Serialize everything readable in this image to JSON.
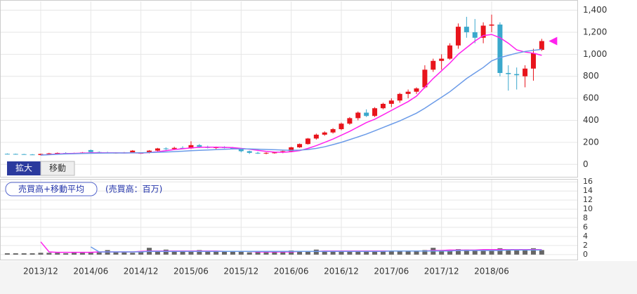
{
  "controls": [
    "拡大",
    "移動"
  ],
  "chart_data": [
    {
      "type": "candlestick",
      "categories": [
        null,
        null,
        null,
        null,
        "2013/12",
        null,
        null,
        null,
        null,
        null,
        "2014/06",
        null,
        null,
        null,
        null,
        null,
        "2014/12",
        null,
        null,
        null,
        null,
        null,
        "2015/06",
        null,
        null,
        null,
        null,
        null,
        "2015/12",
        null,
        null,
        null,
        null,
        null,
        "2016/06",
        null,
        null,
        null,
        null,
        null,
        "2016/12",
        null,
        null,
        null,
        null,
        null,
        "2017/06",
        null,
        null,
        null,
        null,
        null,
        "2017/12",
        null,
        null,
        null,
        null,
        null,
        "2018/06",
        null,
        null,
        null,
        null,
        null,
        null
      ],
      "ohlc": [
        [
          96,
          100,
          92,
          95
        ],
        [
          95,
          98,
          90,
          93
        ],
        [
          93,
          96,
          88,
          90
        ],
        [
          90,
          94,
          86,
          88
        ],
        [
          85,
          98,
          82,
          95
        ],
        [
          95,
          105,
          90,
          100
        ],
        [
          100,
          108,
          95,
          104
        ],
        [
          104,
          110,
          98,
          100
        ],
        [
          100,
          106,
          95,
          103
        ],
        [
          103,
          112,
          98,
          108
        ],
        [
          130,
          135,
          108,
          112
        ],
        [
          112,
          118,
          105,
          110
        ],
        [
          110,
          115,
          100,
          104
        ],
        [
          104,
          110,
          98,
          106
        ],
        [
          106,
          112,
          100,
          108
        ],
        [
          108,
          130,
          104,
          125
        ],
        [
          100,
          108,
          95,
          104
        ],
        [
          104,
          130,
          100,
          125
        ],
        [
          125,
          150,
          120,
          145
        ],
        [
          145,
          155,
          130,
          140
        ],
        [
          140,
          160,
          132,
          150
        ],
        [
          150,
          165,
          140,
          145
        ],
        [
          145,
          210,
          140,
          175
        ],
        [
          175,
          185,
          150,
          160
        ],
        [
          160,
          170,
          145,
          150
        ],
        [
          150,
          162,
          140,
          155
        ],
        [
          155,
          165,
          145,
          150
        ],
        [
          150,
          158,
          135,
          140
        ],
        [
          140,
          145,
          110,
          120
        ],
        [
          120,
          125,
          95,
          105
        ],
        [
          105,
          115,
          95,
          100
        ],
        [
          100,
          110,
          92,
          105
        ],
        [
          105,
          112,
          98,
          108
        ],
        [
          108,
          125,
          102,
          120
        ],
        [
          120,
          160,
          115,
          155
        ],
        [
          155,
          190,
          150,
          185
        ],
        [
          185,
          240,
          180,
          235
        ],
        [
          235,
          280,
          225,
          270
        ],
        [
          270,
          300,
          260,
          290
        ],
        [
          290,
          330,
          280,
          320
        ],
        [
          320,
          380,
          310,
          370
        ],
        [
          370,
          430,
          360,
          420
        ],
        [
          420,
          480,
          400,
          470
        ],
        [
          470,
          500,
          430,
          440
        ],
        [
          440,
          520,
          430,
          510
        ],
        [
          510,
          560,
          500,
          550
        ],
        [
          550,
          600,
          520,
          580
        ],
        [
          580,
          650,
          560,
          640
        ],
        [
          640,
          680,
          600,
          660
        ],
        [
          660,
          700,
          640,
          690
        ],
        [
          700,
          900,
          690,
          860
        ],
        [
          860,
          960,
          840,
          940
        ],
        [
          940,
          1000,
          860,
          960
        ],
        [
          960,
          1100,
          950,
          1080
        ],
        [
          1080,
          1280,
          1050,
          1250
        ],
        [
          1250,
          1340,
          1150,
          1200
        ],
        [
          1200,
          1320,
          1100,
          1150
        ],
        [
          1150,
          1290,
          1100,
          1260
        ],
        [
          1260,
          1360,
          1200,
          1270
        ],
        [
          1270,
          1290,
          800,
          830
        ],
        [
          830,
          900,
          670,
          820
        ],
        [
          820,
          880,
          680,
          810
        ],
        [
          800,
          900,
          700,
          870
        ],
        [
          870,
          1050,
          760,
          1010
        ],
        [
          1040,
          1140,
          1030,
          1120
        ]
      ],
      "up_color": "#e8141c",
      "down_color": "#3aa8cc",
      "series": [
        {
          "color": "#ff22ee",
          "values": [
            null,
            null,
            null,
            null,
            85,
            90,
            95,
            98,
            100,
            102,
            105,
            106,
            106,
            105,
            104,
            105,
            103,
            108,
            115,
            125,
            135,
            142,
            150,
            155,
            157,
            156,
            155,
            152,
            145,
            138,
            128,
            118,
            112,
            110,
            115,
            125,
            145,
            170,
            200,
            230,
            265,
            300,
            340,
            380,
            410,
            450,
            490,
            530,
            570,
            620,
            700,
            780,
            850,
            920,
            1000,
            1060,
            1120,
            1170,
            1180,
            1150,
            1100,
            1040,
            1020,
            1010,
            990
          ]
        },
        {
          "color": "#6b9be8",
          "values": [
            null,
            null,
            null,
            null,
            85,
            88,
            92,
            95,
            97,
            99,
            101,
            102,
            103,
            104,
            104,
            105,
            106,
            108,
            110,
            113,
            116,
            120,
            124,
            128,
            131,
            134,
            137,
            140,
            141,
            140,
            138,
            136,
            133,
            130,
            128,
            130,
            135,
            145,
            160,
            180,
            200,
            225,
            250,
            275,
            305,
            335,
            365,
            395,
            430,
            465,
            510,
            560,
            610,
            660,
            720,
            780,
            830,
            880,
            940,
            970,
            990,
            1010,
            1025,
            1035,
            1045
          ]
        }
      ],
      "marker_color": "#ff22ee",
      "ylim": [
        -100,
        1480
      ],
      "yticks": [
        0,
        200,
        400,
        600,
        800,
        {
          "value": 1000,
          "label": "1,000"
        },
        {
          "value": 1200,
          "label": "1,200"
        },
        {
          "value": 1400,
          "label": "1,400"
        }
      ],
      "grid": true
    },
    {
      "type": "bar",
      "title": "売買高+移動平均",
      "subtitle": "(売買高：百万)",
      "color": "#666666",
      "values": [
        0.3,
        0.3,
        0.3,
        0.3,
        0.4,
        0.4,
        0.4,
        0.3,
        0.4,
        0.4,
        0.6,
        0.5,
        1.0,
        0.6,
        0.5,
        0.4,
        0.6,
        1.5,
        0.7,
        1.1,
        0.6,
        0.7,
        0.6,
        1.0,
        0.7,
        0.6,
        0.7,
        0.6,
        0.6,
        0.5,
        0.6,
        0.5,
        0.6,
        0.6,
        0.9,
        0.7,
        0.7,
        1.1,
        0.8,
        0.7,
        0.9,
        0.8,
        0.7,
        0.7,
        0.8,
        0.7,
        0.8,
        0.9,
        0.8,
        0.9,
        1.0,
        1.5,
        1.0,
        0.9,
        1.2,
        1.1,
        1.0,
        1.1,
        1.0,
        1.4,
        1.0,
        1.0,
        1.1,
        1.4,
        1.0
      ],
      "series": [
        {
          "color": "#ff22ee",
          "values": [
            null,
            null,
            null,
            null,
            2.8,
            0.6,
            0.5,
            0.5,
            0.5,
            0.5,
            0.5,
            0.6,
            0.6,
            0.6,
            0.6,
            0.6,
            0.7,
            0.8,
            0.8,
            0.8,
            0.8,
            0.8,
            0.8,
            0.8,
            0.8,
            0.8,
            0.7,
            0.7,
            0.7,
            0.7,
            0.6,
            0.6,
            0.6,
            0.6,
            0.6,
            0.7,
            0.7,
            0.7,
            0.8,
            0.8,
            0.8,
            0.8,
            0.8,
            0.8,
            0.8,
            0.8,
            0.8,
            0.8,
            0.8,
            0.8,
            0.8,
            0.9,
            0.9,
            1.0,
            1.0,
            1.0,
            1.0,
            1.1,
            1.1,
            1.1,
            1.1,
            1.1,
            1.1,
            1.1,
            1.1
          ]
        },
        {
          "color": "#6b9be8",
          "values": [
            null,
            null,
            null,
            null,
            null,
            null,
            null,
            null,
            null,
            null,
            1.7,
            0.6,
            0.6,
            0.6,
            0.6,
            0.6,
            0.6,
            0.7,
            0.7,
            0.7,
            0.7,
            0.7,
            0.7,
            0.7,
            0.7,
            0.7,
            0.7,
            0.7,
            0.7,
            0.7,
            0.7,
            0.7,
            0.7,
            0.7,
            0.7,
            0.7,
            0.7,
            0.7,
            0.7,
            0.7,
            0.7,
            0.7,
            0.7,
            0.7,
            0.7,
            0.7,
            0.8,
            0.8,
            0.8,
            0.8,
            0.8,
            0.8,
            0.8,
            0.8,
            0.9,
            0.9,
            0.9,
            0.9,
            0.9,
            0.9,
            1.0,
            1.0,
            1.0,
            1.0,
            1.0
          ]
        }
      ],
      "ylim": [
        -1.1,
        16.5
      ],
      "yticks": [
        0,
        2,
        4,
        6,
        8,
        10,
        12,
        14,
        16
      ],
      "grid": true
    }
  ]
}
